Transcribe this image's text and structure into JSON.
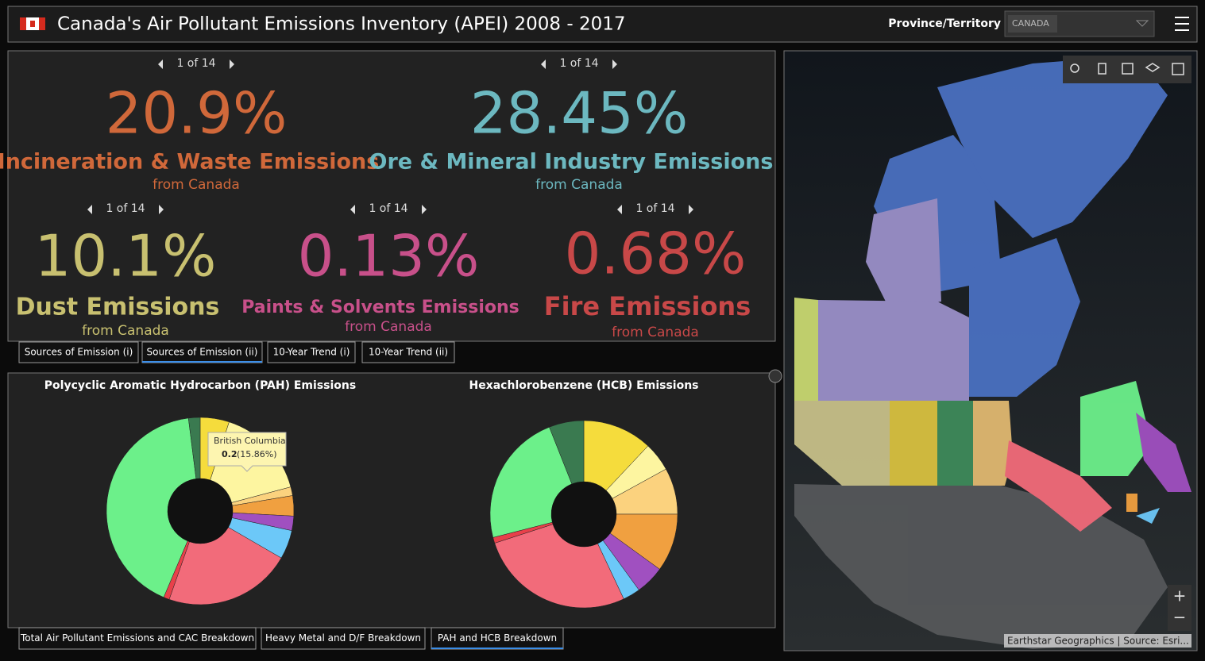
{
  "header": {
    "title": "Canada's Air Pollutant Emissions Inventory (APEI) 2008 - 2017",
    "filter_label": "Province/Territory",
    "filter_value": "CANADA"
  },
  "indicators": [
    {
      "pager": "1 of 14",
      "value": "20.9%",
      "label": "Incineration & Waste Emissions",
      "sublabel": "from Canada",
      "color": "#d0683a"
    },
    {
      "pager": "1 of 14",
      "value": "28.45%",
      "label": "Ore & Mineral Industry Emissions",
      "sublabel": "from Canada",
      "color": "#6cb8c0"
    },
    {
      "pager": "1 of 14",
      "value": "10.1%",
      "label": "Dust Emissions",
      "sublabel": "from Canada",
      "color": "#c8c070"
    },
    {
      "pager": "1 of 14",
      "value": "0.13%",
      "label": "Paints & Solvents Emissions",
      "sublabel": "from Canada",
      "color": "#c8508a"
    },
    {
      "pager": "1 of 14",
      "value": "0.68%",
      "label": "Fire Emissions",
      "sublabel": "from Canada",
      "color": "#c84848"
    }
  ],
  "top_tabs": {
    "labels": [
      "Sources of Emission (i)",
      "Sources of Emission (ii)",
      "10-Year Trend (i)",
      "10-Year Trend (ii)"
    ],
    "active": 1
  },
  "charts": [
    {
      "type": "pie",
      "title": "Polycyclic Aromatic Hydrocarbon (PAH) Emissions",
      "values": [
        5,
        15.86,
        1.5,
        3.5,
        2.5,
        5,
        22,
        1,
        41.64,
        2
      ],
      "colors": [
        "#f5dc3c",
        "#fdf5a0",
        "#fbd27e",
        "#f0a040",
        "#a050c0",
        "#6cc8f8",
        "#f26b7a",
        "#e8404a",
        "#6cf08a",
        "#3a7a50"
      ],
      "tooltip": {
        "title": "British Columbia",
        "value": "0.2",
        "percent": "(15.86%)"
      }
    },
    {
      "type": "pie",
      "title": "Hexachlorobenzene (HCB) Emissions",
      "values": [
        12,
        5,
        8,
        10,
        5,
        3,
        27,
        1,
        23,
        6
      ],
      "colors": [
        "#f5dc3c",
        "#fdf5a0",
        "#fbd27e",
        "#f0a040",
        "#a050c0",
        "#6cc8f8",
        "#f26b7a",
        "#e8404a",
        "#6cf08a",
        "#3a7a50"
      ]
    }
  ],
  "bottom_tabs": {
    "labels": [
      "Total Air Pollutant Emissions and CAC Breakdown",
      "Heavy Metal and D/F Breakdown",
      "PAH and HCB Breakdown"
    ],
    "active": 2
  },
  "map": {
    "zoom_in": "+",
    "zoom_out": "−",
    "attribution": "Earthstar Geographics | Source: Esri..."
  }
}
